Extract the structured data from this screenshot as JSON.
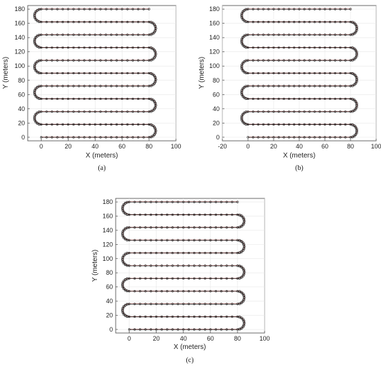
{
  "chart_data": [
    {
      "type": "line",
      "caption": "(a)",
      "xlabel": "X (meters)",
      "ylabel": "Y (meters)",
      "xlim": [
        -10,
        100
      ],
      "ylim": [
        -5,
        185
      ],
      "xticks": [
        0,
        20,
        40,
        60,
        80,
        100
      ],
      "yticks": [
        0,
        20,
        40,
        60,
        80,
        100,
        120,
        140,
        160,
        180
      ],
      "grid": true,
      "lanes": {
        "y_start": 0,
        "y_step": 18,
        "count": 11,
        "x_left": 0,
        "x_right": 80,
        "x_end_last": 80
      },
      "series": [
        {
          "color": "#222222",
          "marker": "circle"
        },
        {
          "color": "#d9534f"
        }
      ]
    },
    {
      "type": "line",
      "caption": "(b)",
      "xlabel": "X (meters)",
      "ylabel": "Y (meters)",
      "xlim": [
        -20,
        100
      ],
      "ylim": [
        -5,
        185
      ],
      "xticks": [
        -20,
        0,
        20,
        40,
        60,
        80,
        100
      ],
      "yticks": [
        0,
        20,
        40,
        60,
        80,
        100,
        120,
        140,
        160,
        180
      ],
      "grid": true,
      "lanes": {
        "y_start": 0,
        "y_step": 18,
        "count": 11,
        "x_left": 0,
        "x_right": 80,
        "x_end_last": 80
      },
      "series": [
        {
          "color": "#222222",
          "marker": "circle"
        },
        {
          "color": "#d9534f"
        }
      ]
    },
    {
      "type": "line",
      "caption": "(c)",
      "xlabel": "X (meters)",
      "ylabel": "Y (meters)",
      "xlim": [
        -10,
        100
      ],
      "ylim": [
        -5,
        185
      ],
      "xticks": [
        0,
        20,
        40,
        60,
        80,
        100
      ],
      "yticks": [
        0,
        20,
        40,
        60,
        80,
        100,
        120,
        140,
        160,
        180
      ],
      "grid": true,
      "lanes": {
        "y_start": 0,
        "y_step": 18,
        "count": 11,
        "x_left": 0,
        "x_right": 80,
        "x_end_last": 80
      },
      "series": [
        {
          "color": "#222222",
          "marker": "circle"
        },
        {
          "color": "#d9534f"
        }
      ]
    }
  ]
}
